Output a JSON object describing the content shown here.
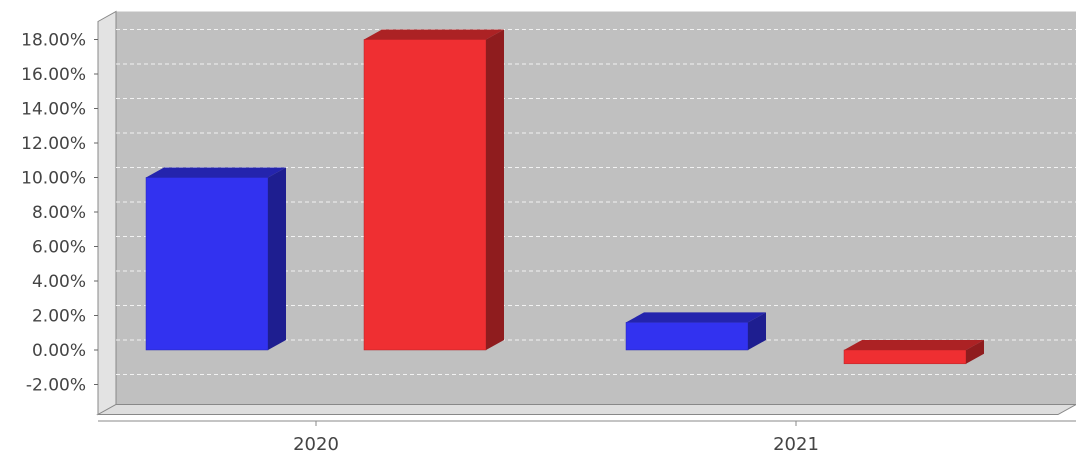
{
  "chart_data": {
    "type": "bar",
    "style": "3d",
    "categories": [
      "2020",
      "2021"
    ],
    "series": [
      {
        "color": "#3232f0",
        "values": [
          10.0,
          1.6
        ]
      },
      {
        "color": "#ef2f32",
        "values": [
          18.0,
          -0.8
        ]
      }
    ],
    "ylim": [
      -2.0,
      18.0
    ],
    "y_ticks": [
      "-2.00%",
      "0.00%",
      "2.00%",
      "4.00%",
      "6.00%",
      "8.00%",
      "10.00%",
      "12.00%",
      "14.00%",
      "16.00%",
      "18.00%"
    ],
    "y_format": "percent",
    "grid": true,
    "legend": "none",
    "title": "",
    "xlabel": "",
    "ylabel": "",
    "plot_background": "#c0c0c0"
  }
}
